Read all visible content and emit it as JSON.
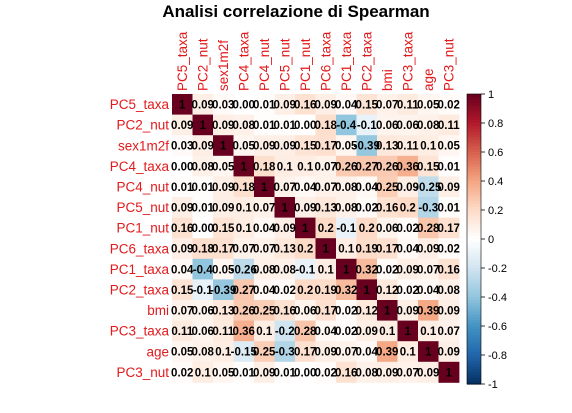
{
  "chart_data": {
    "type": "heatmap",
    "title": "Analisi correlazione di Spearman",
    "variables": [
      "PC5_taxa",
      "PC2_nut",
      "sex1m2f",
      "PC4_taxa",
      "PC4_nut",
      "PC5_nut",
      "PC1_nut",
      "PC6_taxa",
      "PC1_taxa",
      "PC2_taxa",
      "bmi",
      "PC3_taxa",
      "age",
      "PC3_nut"
    ],
    "matrix": [
      [
        1,
        0.09,
        0.03,
        0.0,
        0.01,
        0.09,
        0.16,
        0.09,
        0.04,
        0.15,
        0.07,
        0.11,
        0.05,
        0.02
      ],
      [
        0.09,
        1,
        0.09,
        0.08,
        0.01,
        0.01,
        0.0,
        0.18,
        -0.4,
        -0.1,
        0.06,
        0.06,
        0.08,
        0.11
      ],
      [
        0.03,
        0.09,
        1,
        0.05,
        0.09,
        0.09,
        0.15,
        0.17,
        0.05,
        -0.39,
        0.13,
        0.11,
        0.1,
        0.05
      ],
      [
        0.0,
        0.08,
        0.05,
        1,
        0.18,
        0.1,
        0.1,
        0.07,
        0.26,
        0.27,
        0.26,
        0.36,
        0.15,
        0.01
      ],
      [
        0.01,
        0.01,
        0.09,
        0.18,
        1,
        0.07,
        0.04,
        0.07,
        0.08,
        0.04,
        0.25,
        0.09,
        -0.25,
        0.09
      ],
      [
        0.09,
        0.01,
        0.09,
        0.1,
        0.07,
        1,
        0.09,
        0.13,
        0.08,
        0.02,
        0.16,
        0.2,
        -0.3,
        0.01
      ],
      [
        0.16,
        0.0,
        0.15,
        0.1,
        0.04,
        0.09,
        1,
        0.2,
        -0.1,
        0.2,
        0.06,
        0.02,
        0.28,
        0.17
      ],
      [
        0.09,
        0.18,
        0.17,
        0.07,
        0.07,
        0.13,
        0.2,
        1,
        0.1,
        0.19,
        0.17,
        0.04,
        0.09,
        0.02
      ],
      [
        0.04,
        -0.4,
        0.05,
        -0.26,
        0.08,
        0.08,
        -0.1,
        0.1,
        1,
        0.32,
        0.02,
        0.09,
        0.07,
        0.16
      ],
      [
        0.15,
        -0.1,
        -0.39,
        0.27,
        0.04,
        0.02,
        0.2,
        0.19,
        0.32,
        1,
        0.12,
        0.02,
        0.04,
        0.08
      ],
      [
        0.07,
        0.06,
        0.13,
        0.26,
        0.25,
        0.16,
        0.06,
        0.17,
        0.02,
        0.12,
        1,
        0.09,
        0.39,
        0.09
      ],
      [
        0.11,
        0.06,
        0.11,
        0.36,
        0.1,
        -0.2,
        0.28,
        0.04,
        0.02,
        0.09,
        0.1,
        1,
        0.1,
        0.07
      ],
      [
        0.05,
        0.08,
        0.1,
        -0.15,
        0.25,
        -0.3,
        0.17,
        0.09,
        0.07,
        0.04,
        0.39,
        0.1,
        1,
        0.09
      ],
      [
        0.02,
        0.1,
        0.05,
        0.01,
        0.09,
        0.01,
        0.0,
        0.02,
        0.16,
        0.08,
        0.09,
        0.07,
        0.09,
        1
      ]
    ],
    "matrix_display": [
      [
        "1",
        "0.09",
        "0.03",
        "0.00",
        "0.01",
        "0.09",
        "0.16",
        "0.09",
        "0.04",
        "0.15",
        "0.07",
        "0.11",
        "0.05",
        "0.02"
      ],
      [
        "0.09",
        "1",
        "0.09",
        "0.08",
        "0.01",
        "0.01",
        "0.00",
        "0.18",
        "-0.4",
        "-0.1",
        "0.06",
        "0.06",
        "0.08",
        "0.11"
      ],
      [
        "0.03",
        "0.09",
        "1",
        "0.05",
        "0.09",
        "0.09",
        "0.15",
        "0.17",
        "0.05",
        "-0.39",
        "0.13",
        "0.11",
        "0.1",
        "0.05"
      ],
      [
        "0.00",
        "0.08",
        "0.05",
        "1",
        "0.18",
        "0.1",
        "0.1",
        "0.07",
        "0.26",
        "0.27",
        "0.26",
        "0.36",
        "0.15",
        "0.01"
      ],
      [
        "0.01",
        "0.01",
        "0.09",
        "0.18",
        "1",
        "0.07",
        "0.04",
        "0.07",
        "0.08",
        "0.04",
        "0.25",
        "0.09",
        "-0.25",
        "0.09"
      ],
      [
        "0.09",
        "0.01",
        "0.09",
        "0.1",
        "0.07",
        "1",
        "0.09",
        "0.13",
        "0.08",
        "0.02",
        "0.16",
        "0.2",
        "-0.3",
        "0.01"
      ],
      [
        "0.16",
        "0.00",
        "0.15",
        "0.1",
        "0.04",
        "0.09",
        "1",
        "0.2",
        "-0.1",
        "0.2",
        "0.06",
        "0.02",
        "0.28",
        "0.17"
      ],
      [
        "0.09",
        "0.18",
        "0.17",
        "0.07",
        "0.07",
        "0.13",
        "0.2",
        "1",
        "0.1",
        "0.19",
        "0.17",
        "0.04",
        "0.09",
        "0.02"
      ],
      [
        "0.04",
        "-0.4",
        "0.05",
        "-0.26",
        "0.08",
        "0.08",
        "-0.1",
        "0.1",
        "1",
        "0.32",
        "0.02",
        "0.09",
        "0.07",
        "0.16"
      ],
      [
        "0.15",
        "-0.1",
        "-0.39",
        "0.27",
        "0.04",
        "0.02",
        "0.2",
        "0.19",
        "0.32",
        "1",
        "0.12",
        "0.02",
        "0.04",
        "0.08"
      ],
      [
        "0.07",
        "0.06",
        "0.13",
        "0.26",
        "0.25",
        "0.16",
        "0.06",
        "0.17",
        "0.02",
        "0.12",
        "1",
        "0.09",
        "0.39",
        "0.09"
      ],
      [
        "0.11",
        "0.06",
        "0.11",
        "0.36",
        "0.1",
        "-0.2",
        "0.28",
        "0.04",
        "0.02",
        "0.09",
        "0.1",
        "1",
        "0.1",
        "0.07"
      ],
      [
        "0.05",
        "0.08",
        "0.1",
        "-0.15",
        "0.25",
        "-0.3",
        "0.17",
        "0.09",
        "0.07",
        "0.04",
        "0.39",
        "0.1",
        "1",
        "0.09"
      ],
      [
        "0.02",
        "0.1",
        "0.05",
        "0.01",
        "0.09",
        "0.01",
        "0.00",
        "0.02",
        "0.16",
        "0.08",
        "0.09",
        "0.07",
        "0.09",
        "1"
      ]
    ],
    "color_scale": {
      "min": -1,
      "max": 1,
      "ticks": [
        "1",
        "0.8",
        "0.6",
        "0.4",
        "0.2",
        "0",
        "-0.2",
        "-0.4",
        "-0.6",
        "-0.8",
        "-1"
      ],
      "stops": [
        "#053061",
        "#2166ac",
        "#4393c3",
        "#92c5de",
        "#d1e5f0",
        "#ffffff",
        "#fddbc7",
        "#f4a582",
        "#d6604d",
        "#b2182b",
        "#67001f"
      ]
    },
    "label_color": "#e31a1c",
    "legend": "right",
    "grid": false
  }
}
